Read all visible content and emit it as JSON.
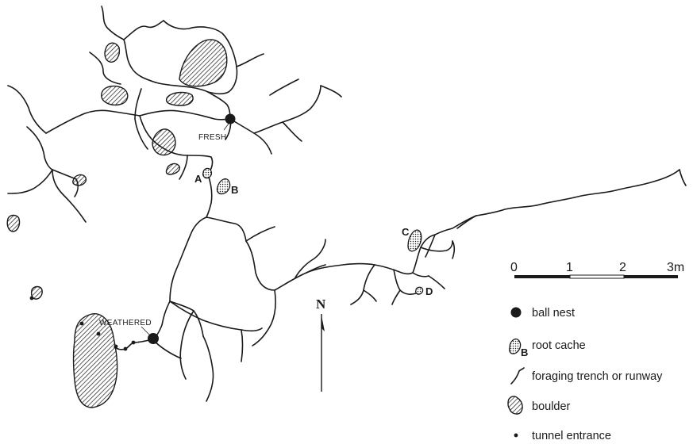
{
  "labels": {
    "fresh": "FRESH",
    "weathered": "WEATHERED",
    "north": "N",
    "cache_a": "A",
    "cache_b": "B",
    "cache_c": "C",
    "cache_d": "D"
  },
  "scale_bar": {
    "ticks": [
      "0",
      "1",
      "2",
      "3m"
    ]
  },
  "legend": {
    "ball_nest": "ball nest",
    "root_cache": "root cache",
    "root_cache_symbol_letter": "B",
    "foraging": "foraging trench or runway",
    "boulder": "boulder",
    "tunnel_entrance": "tunnel entrance"
  },
  "colors": {
    "ink": "#1a1a1a",
    "background": "#ffffff"
  }
}
